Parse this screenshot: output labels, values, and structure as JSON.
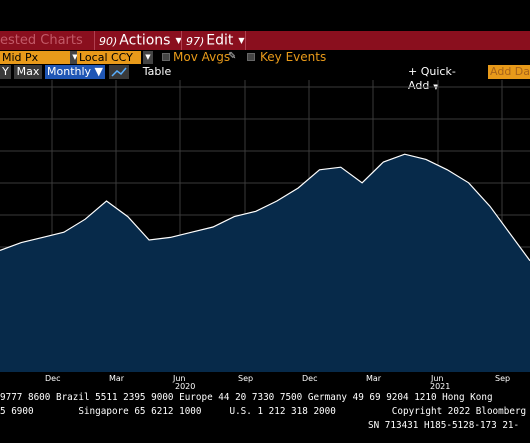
{
  "menubar": {
    "suggested": "ested Charts",
    "actions_num": "90)",
    "actions": "Actions",
    "edit_num": "97)",
    "edit": "Edit"
  },
  "toolbar": {
    "price_field": "Mid Px",
    "currency_field": "Local CCY",
    "mov_avgs": "Mov Avgs",
    "key_events": "Key Events"
  },
  "range_bar": {
    "partial": "Y",
    "max": "Max",
    "period": "Monthly ▼",
    "table": "Table",
    "quick_add": "+ Quick-Add",
    "add_data": "Add Da"
  },
  "chart_data": {
    "type": "area",
    "x": [
      "2019-10",
      "2019-11",
      "2019-12",
      "2020-01",
      "2020-02",
      "2020-03",
      "2020-04",
      "2020-05",
      "2020-06",
      "2020-07",
      "2020-08",
      "2020-09",
      "2020-10",
      "2020-11",
      "2020-12",
      "2021-01",
      "2021-02",
      "2021-03",
      "2021-04",
      "2021-05",
      "2021-06",
      "2021-07",
      "2021-08",
      "2021-09",
      "2021-10"
    ],
    "y_rel": [
      0.83,
      0.845,
      0.855,
      0.865,
      0.89,
      0.925,
      0.895,
      0.85,
      0.855,
      0.865,
      0.875,
      0.895,
      0.905,
      0.925,
      0.95,
      0.985,
      0.99,
      0.96,
      1.0,
      1.015,
      1.005,
      0.985,
      0.96,
      0.915,
      0.81
    ],
    "x_tick_labels": [
      "Dec",
      "Mar",
      "Jun",
      "Sep",
      "Dec",
      "Mar",
      "Jun",
      "Sep"
    ],
    "year_labels": [
      "2020",
      "2021"
    ],
    "fill_color": "#072a4a",
    "line_color": "#ffffff",
    "grid": true,
    "grid_color": "#3a3a3a"
  },
  "footer": {
    "line1": "9777 8600 Brazil 5511 2395 9000 Europe 44 20 7330 7500 Germany 49 69 9204 1210 Hong Kong",
    "line2": "5 6900        Singapore 65 6212 1000     U.S. 1 212 318 2000          Copyright 2022 Bloomberg",
    "line3": "SN 713431 H185-5128-173 21-"
  }
}
